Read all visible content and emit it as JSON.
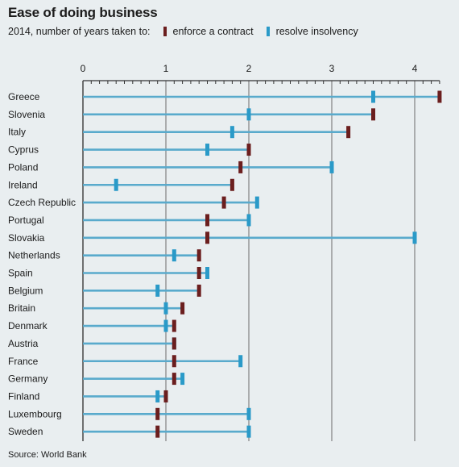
{
  "chart_data": {
    "type": "dot-range",
    "title": "Ease of doing business",
    "subtitle": "2014, number of years taken to:",
    "legend": [
      {
        "name": "enforce a contract",
        "color": "#6b1e1e"
      },
      {
        "name": "resolve insolvency",
        "color": "#2a9ac8"
      }
    ],
    "source": "Source: World Bank",
    "xlim": [
      0,
      4.3
    ],
    "ticks": [
      0,
      1,
      2,
      3,
      4
    ],
    "grid": true,
    "line_color": "#59aacc",
    "categories": [
      "Greece",
      "Slovenia",
      "Italy",
      "Cyprus",
      "Poland",
      "Ireland",
      "Czech Republic",
      "Portugal",
      "Slovakia",
      "Netherlands",
      "Spain",
      "Belgium",
      "Britain",
      "Denmark",
      "Austria",
      "France",
      "Germany",
      "Finland",
      "Luxembourg",
      "Sweden"
    ],
    "series": [
      {
        "name": "enforce a contract",
        "values": [
          4.3,
          3.5,
          3.2,
          2.0,
          1.9,
          1.8,
          1.7,
          1.5,
          1.5,
          1.4,
          1.4,
          1.4,
          1.2,
          1.1,
          1.1,
          1.1,
          1.1,
          1.0,
          0.9,
          0.9
        ]
      },
      {
        "name": "resolve insolvency",
        "values": [
          3.5,
          2.0,
          1.8,
          1.5,
          3.0,
          0.4,
          2.1,
          2.0,
          4.0,
          1.1,
          1.5,
          0.9,
          1.0,
          1.0,
          1.1,
          1.9,
          1.2,
          0.9,
          2.0,
          2.0
        ]
      }
    ]
  }
}
